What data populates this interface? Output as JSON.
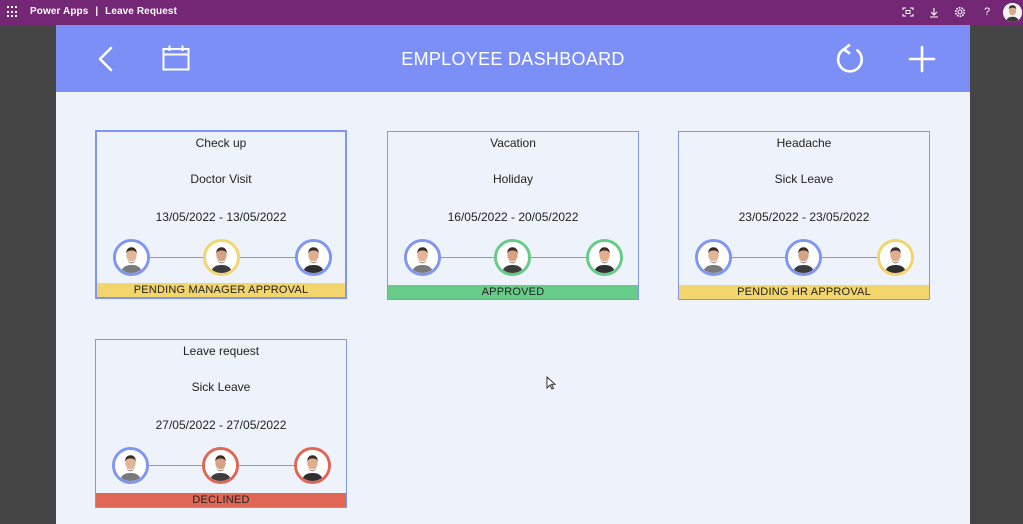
{
  "topbar": {
    "app_name": "Power Apps",
    "separator": "|",
    "doc_name": "Leave Request",
    "icons": [
      "fit-screen-icon",
      "download-icon",
      "settings-icon",
      "help-icon",
      "user-avatar"
    ]
  },
  "header": {
    "title": "EMPLOYEE DASHBOARD",
    "buttons": [
      "back-icon",
      "calendar-icon",
      "refresh-icon",
      "add-icon"
    ]
  },
  "colors": {
    "pending": "#f3d56d",
    "approved": "#66cc88",
    "declined": "#e06655",
    "neutral": "#7f96f2"
  },
  "requests": [
    {
      "title": "Check up",
      "type": "Doctor Visit",
      "dates": "13/05/2022  -  13/05/2022",
      "status": "PENDING MANAGER APPROVAL",
      "status_color": "pending",
      "approvers": [
        "neutral",
        "pending",
        "neutral"
      ]
    },
    {
      "title": "Vacation",
      "type": "Holiday",
      "dates": "16/05/2022  -  20/05/2022",
      "status": "APPROVED",
      "status_color": "approved",
      "approvers": [
        "neutral",
        "approved",
        "approved"
      ]
    },
    {
      "title": "Headache",
      "type": "Sick Leave",
      "dates": "23/05/2022  -  23/05/2022",
      "status": "PENDING HR APPROVAL",
      "status_color": "pending",
      "approvers": [
        "neutral",
        "neutral",
        "pending"
      ]
    },
    {
      "title": "Leave request",
      "type": "Sick Leave",
      "dates": "27/05/2022  -  27/05/2022",
      "status": "DECLINED",
      "status_color": "declined",
      "approvers": [
        "neutral",
        "declined",
        "declined"
      ]
    }
  ]
}
